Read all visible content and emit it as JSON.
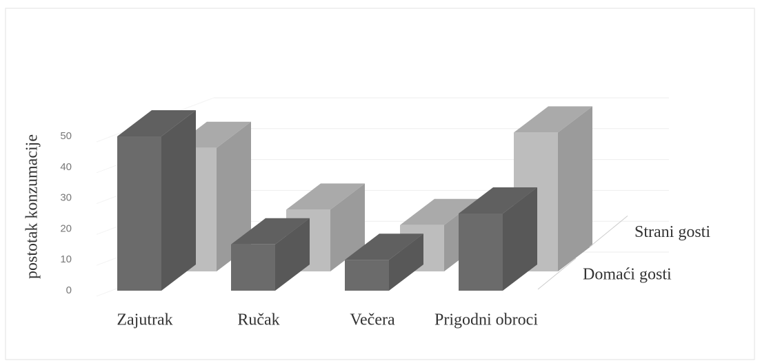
{
  "chart_data": {
    "type": "bar3d",
    "y_label": "postotak konzumacije",
    "categories": [
      "Zajutrak",
      "Ručak",
      "Večera",
      "Prigodni obroci"
    ],
    "series": [
      {
        "name": "Domaći gosti",
        "color": "#6b6b6b",
        "values": [
          50,
          15,
          10,
          25
        ]
      },
      {
        "name": "Strani gosti",
        "color": "#bdbdbd",
        "values": [
          40,
          20,
          15,
          45
        ]
      }
    ],
    "ylim": [
      0,
      50
    ],
    "yticks": [
      0,
      10,
      20,
      30,
      40,
      50
    ],
    "grid": true
  }
}
